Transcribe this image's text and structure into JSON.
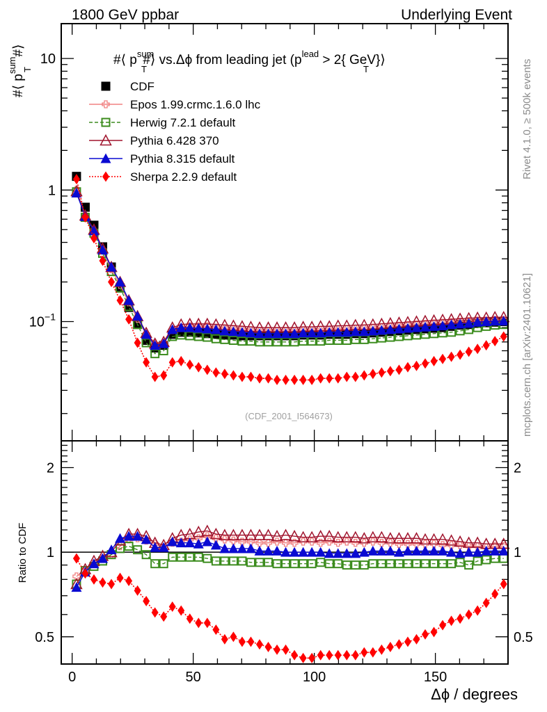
{
  "header": {
    "left": "1800 GeV ppbar",
    "right": "Underlying Event"
  },
  "side_labels": {
    "rivet": "Rivet 4.1.0, ≥ 500k events",
    "mcplots": "mcplots.cern.ch [arXiv:2401.10621]"
  },
  "watermark": "(CDF_2001_I564673)",
  "chart_data": [
    {
      "type": "scatter",
      "panel": "main",
      "title": "#⟨ p_T^sum #⟩ vs. Δϕ from leading jet  (p_T^lead > 2{ GeV})",
      "title_parts": {
        "a": "#⟨ p",
        "sup1": "sum",
        "sub1": "T",
        "b": "#⟩ vs.Δϕ from leading jet  (p",
        "sup2": "lead",
        "sub2": "T",
        "c": " > 2{ GeV}⟩"
      },
      "ylabel": "#⟨ p_T^sum #⟩",
      "ylabel_parts": {
        "a": "#⟨ p",
        "sup": "sum",
        "sub": "T",
        "b": "#⟩"
      },
      "xlabel": "",
      "yscale": "log",
      "xlim": [
        -4.5,
        180
      ],
      "ylim": [
        0.0124,
        18.4
      ],
      "yticks": [
        {
          "v": 10,
          "label": "10"
        },
        {
          "v": 1,
          "label": "1"
        },
        {
          "v": 0.1,
          "label": "10",
          "exp": "−1"
        }
      ],
      "legend_position": "top-left",
      "x": [
        1.8,
        5.4,
        9,
        12.6,
        16.2,
        19.8,
        23.4,
        27,
        30.6,
        34.2,
        37.8,
        41.4,
        45,
        48.6,
        52.2,
        55.8,
        59.4,
        63,
        66.6,
        70.2,
        73.8,
        77.4,
        81,
        84.6,
        88.2,
        91.8,
        95.4,
        99,
        102.6,
        106.2,
        109.8,
        113.4,
        117,
        120.6,
        124.2,
        127.8,
        131.4,
        135,
        138.6,
        142.2,
        145.8,
        149.4,
        153,
        156.6,
        160.2,
        163.8,
        167.4,
        171,
        174.6,
        178.2
      ],
      "series": [
        {
          "name": "CDF",
          "color": "#000000",
          "marker": "square-filled",
          "line": "none",
          "values": [
            1.27,
            0.74,
            0.54,
            0.37,
            0.26,
            0.18,
            0.128,
            0.095,
            0.072,
            0.063,
            0.066,
            0.08,
            0.083,
            0.083,
            0.082,
            0.081,
            0.08,
            0.079,
            0.079,
            0.078,
            0.078,
            0.078,
            0.078,
            0.078,
            0.078,
            0.078,
            0.079,
            0.079,
            0.079,
            0.08,
            0.08,
            0.08,
            0.081,
            0.081,
            0.082,
            0.083,
            0.084,
            0.085,
            0.086,
            0.087,
            0.088,
            0.089,
            0.09,
            0.092,
            0.094,
            0.095,
            0.097,
            0.098,
            0.099,
            0.1
          ]
        },
        {
          "name": "Epos 1.99.crmc.1.6.0 lhc",
          "color": "#f08080",
          "marker": "cross-open",
          "line": "solid",
          "values": [
            1.0,
            0.64,
            0.49,
            0.35,
            0.25,
            0.19,
            0.14,
            0.105,
            0.08,
            0.068,
            0.069,
            0.086,
            0.09,
            0.092,
            0.092,
            0.092,
            0.09,
            0.089,
            0.088,
            0.087,
            0.086,
            0.085,
            0.085,
            0.085,
            0.085,
            0.085,
            0.086,
            0.086,
            0.086,
            0.087,
            0.087,
            0.088,
            0.088,
            0.089,
            0.09,
            0.091,
            0.092,
            0.093,
            0.094,
            0.095,
            0.096,
            0.097,
            0.098,
            0.099,
            0.1,
            0.101,
            0.102,
            0.102,
            0.103,
            0.103
          ]
        },
        {
          "name": "Herwig 7.2.1 default",
          "color": "#3c8c1e",
          "marker": "square-open",
          "line": "dashed",
          "values": [
            0.97,
            0.62,
            0.47,
            0.33,
            0.24,
            0.18,
            0.13,
            0.095,
            0.069,
            0.057,
            0.06,
            0.077,
            0.079,
            0.078,
            0.077,
            0.076,
            0.074,
            0.073,
            0.072,
            0.071,
            0.071,
            0.07,
            0.07,
            0.07,
            0.07,
            0.07,
            0.071,
            0.071,
            0.071,
            0.072,
            0.072,
            0.072,
            0.073,
            0.073,
            0.074,
            0.075,
            0.076,
            0.077,
            0.078,
            0.079,
            0.08,
            0.081,
            0.082,
            0.083,
            0.085,
            0.087,
            0.09,
            0.092,
            0.094,
            0.095
          ]
        },
        {
          "name": "Pythia 6.428 370",
          "color": "#a0142d",
          "marker": "triangle-open",
          "line": "solid",
          "values": [
            0.98,
            0.64,
            0.5,
            0.36,
            0.26,
            0.2,
            0.145,
            0.11,
            0.082,
            0.068,
            0.07,
            0.09,
            0.095,
            0.096,
            0.096,
            0.096,
            0.095,
            0.094,
            0.093,
            0.092,
            0.091,
            0.09,
            0.09,
            0.09,
            0.09,
            0.09,
            0.091,
            0.091,
            0.092,
            0.092,
            0.093,
            0.093,
            0.094,
            0.094,
            0.095,
            0.096,
            0.097,
            0.098,
            0.099,
            0.1,
            0.101,
            0.102,
            0.103,
            0.104,
            0.105,
            0.106,
            0.107,
            0.107,
            0.108,
            0.108
          ]
        },
        {
          "name": "Pythia 8.315 default",
          "color": "#0a0ad2",
          "marker": "triangle-filled",
          "line": "solid",
          "values": [
            0.95,
            0.63,
            0.49,
            0.35,
            0.26,
            0.2,
            0.145,
            0.11,
            0.08,
            0.066,
            0.068,
            0.087,
            0.09,
            0.09,
            0.089,
            0.088,
            0.087,
            0.085,
            0.084,
            0.083,
            0.082,
            0.081,
            0.081,
            0.081,
            0.081,
            0.081,
            0.082,
            0.082,
            0.082,
            0.083,
            0.083,
            0.083,
            0.084,
            0.084,
            0.085,
            0.086,
            0.087,
            0.088,
            0.089,
            0.09,
            0.091,
            0.092,
            0.093,
            0.095,
            0.096,
            0.097,
            0.099,
            0.1,
            0.101,
            0.101
          ]
        },
        {
          "name": "Sherpa 2.2.9 default",
          "color": "#ff0000",
          "marker": "diamond-filled",
          "line": "dotted",
          "values": [
            1.21,
            0.62,
            0.43,
            0.29,
            0.2,
            0.145,
            0.104,
            0.069,
            0.049,
            0.038,
            0.039,
            0.049,
            0.05,
            0.047,
            0.045,
            0.043,
            0.041,
            0.04,
            0.039,
            0.038,
            0.038,
            0.037,
            0.037,
            0.036,
            0.036,
            0.036,
            0.036,
            0.036,
            0.037,
            0.037,
            0.037,
            0.038,
            0.038,
            0.039,
            0.04,
            0.041,
            0.042,
            0.043,
            0.045,
            0.046,
            0.048,
            0.05,
            0.052,
            0.054,
            0.056,
            0.059,
            0.062,
            0.066,
            0.071,
            0.077
          ]
        }
      ]
    },
    {
      "type": "scatter",
      "panel": "ratio",
      "ylabel": "Ratio to CDF",
      "xlabel": "Δϕ / degrees",
      "xlabel_parts": {
        "a": "Δϕ",
        "b": " / degrees"
      },
      "yscale": "log",
      "xlim": [
        -4.5,
        180
      ],
      "ylim": [
        0.4,
        2.49
      ],
      "reference_line": 1,
      "yticks": [
        {
          "v": 2,
          "label": "2"
        },
        {
          "v": 1,
          "label": "1"
        },
        {
          "v": 0.5,
          "label": "0.5"
        }
      ],
      "xticks": [
        {
          "v": 0,
          "label": "0"
        },
        {
          "v": 50,
          "label": "50"
        },
        {
          "v": 100,
          "label": "100"
        },
        {
          "v": 150,
          "label": "150"
        }
      ],
      "x": [
        1.8,
        5.4,
        9,
        12.6,
        16.2,
        19.8,
        23.4,
        27,
        30.6,
        34.2,
        37.8,
        41.4,
        45,
        48.6,
        52.2,
        55.8,
        59.4,
        63,
        66.6,
        70.2,
        73.8,
        77.4,
        81,
        84.6,
        88.2,
        91.8,
        95.4,
        99,
        102.6,
        106.2,
        109.8,
        113.4,
        117,
        120.6,
        124.2,
        127.8,
        131.4,
        135,
        138.6,
        142.2,
        145.8,
        149.4,
        153,
        156.6,
        160.2,
        163.8,
        167.4,
        171,
        174.6,
        178.2
      ],
      "series": [
        {
          "name": "Epos 1.99.crmc.1.6.0 lhc",
          "color": "#f08080",
          "marker": "cross-open",
          "line": "solid",
          "values": [
            0.82,
            0.86,
            0.91,
            0.95,
            0.98,
            1.05,
            1.11,
            1.12,
            1.1,
            1.07,
            1.04,
            1.08,
            1.09,
            1.11,
            1.12,
            1.14,
            1.12,
            1.11,
            1.1,
            1.09,
            1.09,
            1.08,
            1.08,
            1.09,
            1.08,
            1.08,
            1.09,
            1.09,
            1.08,
            1.09,
            1.08,
            1.09,
            1.08,
            1.08,
            1.09,
            1.08,
            1.08,
            1.07,
            1.07,
            1.07,
            1.07,
            1.07,
            1.06,
            1.06,
            1.06,
            1.05,
            1.05,
            1.04,
            1.05,
            1.05
          ]
        },
        {
          "name": "Herwig 7.2.1 default",
          "color": "#3c8c1e",
          "marker": "square-open",
          "line": "dashed",
          "values": [
            0.77,
            0.86,
            0.89,
            0.93,
            0.98,
            1.03,
            1.05,
            1.02,
            0.98,
            0.91,
            0.91,
            0.96,
            0.96,
            0.96,
            0.96,
            0.95,
            0.93,
            0.93,
            0.93,
            0.93,
            0.92,
            0.92,
            0.92,
            0.91,
            0.91,
            0.91,
            0.91,
            0.91,
            0.92,
            0.91,
            0.91,
            0.9,
            0.9,
            0.9,
            0.91,
            0.91,
            0.91,
            0.91,
            0.91,
            0.91,
            0.91,
            0.91,
            0.91,
            0.91,
            0.92,
            0.9,
            0.93,
            0.94,
            0.95,
            0.95
          ]
        },
        {
          "name": "Pythia 6.428 370",
          "color": "#a0142d",
          "marker": "triangle-open",
          "line": "solid",
          "values": [
            0.77,
            0.87,
            0.93,
            0.97,
            1.0,
            1.1,
            1.16,
            1.16,
            1.14,
            1.08,
            1.06,
            1.12,
            1.15,
            1.16,
            1.18,
            1.19,
            1.16,
            1.15,
            1.15,
            1.15,
            1.15,
            1.15,
            1.15,
            1.14,
            1.15,
            1.14,
            1.13,
            1.13,
            1.14,
            1.14,
            1.13,
            1.13,
            1.13,
            1.12,
            1.13,
            1.13,
            1.12,
            1.12,
            1.12,
            1.12,
            1.11,
            1.11,
            1.11,
            1.1,
            1.09,
            1.08,
            1.08,
            1.07,
            1.07,
            1.07
          ]
        },
        {
          "name": "Pythia 8.315 default",
          "color": "#0a0ad2",
          "marker": "triangle-filled",
          "line": "solid",
          "values": [
            0.75,
            0.85,
            0.91,
            0.95,
            1.02,
            1.12,
            1.14,
            1.14,
            1.11,
            1.04,
            1.04,
            1.09,
            1.08,
            1.08,
            1.07,
            1.09,
            1.06,
            1.03,
            1.03,
            1.03,
            1.03,
            1.01,
            1.01,
            1.01,
            1.0,
            1.0,
            1.0,
            1.0,
            1.0,
            0.99,
            0.99,
            0.99,
            0.99,
            1.0,
            1.01,
            1.01,
            1.01,
            1.0,
            1.01,
            1.01,
            1.01,
            1.01,
            1.01,
            1.0,
            0.99,
            1.0,
            1.0,
            1.01,
            1.01,
            1.01
          ]
        },
        {
          "name": "Sherpa 2.2.9 default",
          "color": "#ff0000",
          "marker": "diamond-filled",
          "line": "dotted",
          "values": [
            0.95,
            0.84,
            0.8,
            0.78,
            0.77,
            0.81,
            0.79,
            0.73,
            0.67,
            0.61,
            0.59,
            0.64,
            0.62,
            0.58,
            0.56,
            0.56,
            0.53,
            0.49,
            0.5,
            0.48,
            0.48,
            0.47,
            0.46,
            0.45,
            0.45,
            0.43,
            0.42,
            0.42,
            0.43,
            0.43,
            0.43,
            0.43,
            0.43,
            0.44,
            0.44,
            0.45,
            0.46,
            0.47,
            0.48,
            0.49,
            0.51,
            0.52,
            0.55,
            0.57,
            0.58,
            0.6,
            0.62,
            0.66,
            0.71,
            0.77
          ]
        }
      ]
    }
  ]
}
